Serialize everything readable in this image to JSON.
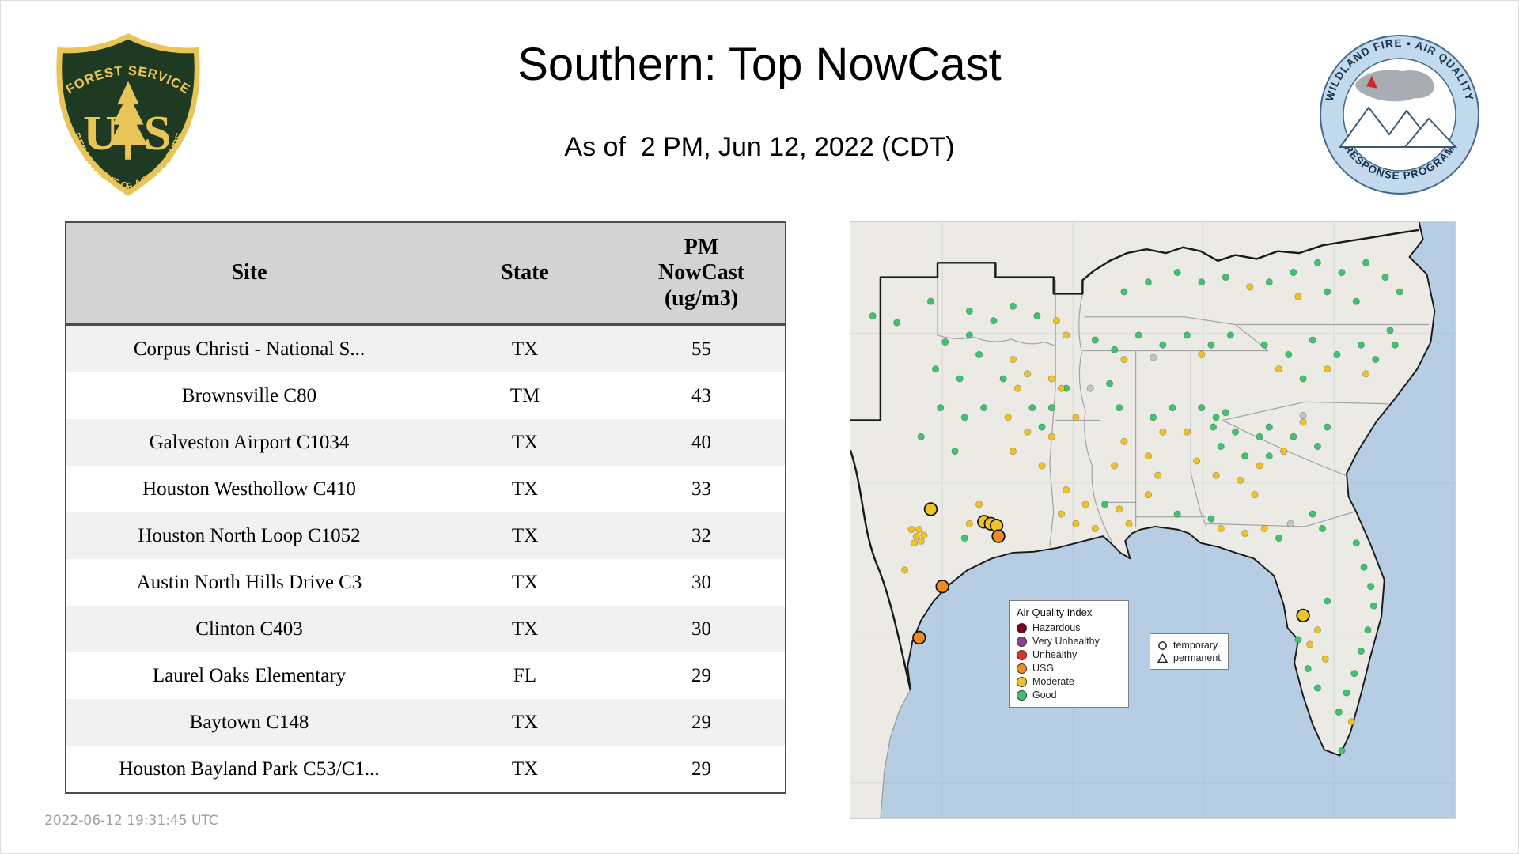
{
  "header": {
    "title": "Southern: Top NowCast",
    "subtitle": "As of  2 PM, Jun 12, 2022 (CDT)"
  },
  "logos": {
    "usfs": {
      "top_text": "FOREST SERVICE",
      "u": "U",
      "s": "S",
      "bottom_text": "DEPARTMENT OF AGRICULTURE",
      "green": "#1e3a22",
      "gold": "#e9c558"
    },
    "airfire": {
      "top_text": "WILDLAND FIRE • AIR QUALITY",
      "bottom_text": "RESPONSE PROGRAM"
    }
  },
  "table": {
    "headers": {
      "site": "Site",
      "state": "State",
      "pm_lines": [
        "PM",
        "NowCast",
        "(ug/m3)"
      ]
    },
    "rows": [
      [
        "Corpus Christi - National S...",
        "TX",
        "55"
      ],
      [
        "Brownsville C80",
        "TM",
        "43"
      ],
      [
        "Galveston Airport C1034",
        "TX",
        "40"
      ],
      [
        "Houston Westhollow C410",
        "TX",
        "33"
      ],
      [
        "Houston North Loop C1052",
        "TX",
        "32"
      ],
      [
        "Austin North Hills Drive C3",
        "TX",
        "30"
      ],
      [
        "Clinton C403",
        "TX",
        "30"
      ],
      [
        "Laurel Oaks Elementary",
        "FL",
        "29"
      ],
      [
        "Baytown C148",
        "TX",
        "29"
      ],
      [
        "Houston Bayland Park C53/C1...",
        "TX",
        "29"
      ]
    ]
  },
  "map": {
    "colors": {
      "water": "#b7cde3",
      "land": "#eceae5",
      "state_line": "#9b9b9b",
      "region_line": "#1a1a1a"
    },
    "marker_colors": {
      "g": "#3fc46d",
      "y": "#eec32a",
      "o": "#f08b22",
      "n": "#c4c4c4"
    },
    "legend": {
      "title": "Air Quality Index",
      "items": [
        {
          "label": "Hazardous",
          "color": "#7e0023"
        },
        {
          "label": "Very Unhealthy",
          "color": "#8f3f97"
        },
        {
          "label": "Unhealthy",
          "color": "#e03131"
        },
        {
          "label": "USG",
          "color": "#f08b22"
        },
        {
          "label": "Moderate",
          "color": "#eec32a"
        },
        {
          "label": "Good",
          "color": "#3fc46d"
        }
      ]
    },
    "symbol_legend": {
      "temporary": "temporary",
      "permanent": "permanent"
    },
    "monitors": [
      [
        23,
        97,
        "g"
      ],
      [
        48,
        104,
        "g"
      ],
      [
        98,
        124,
        "g"
      ],
      [
        123,
        117,
        "g"
      ],
      [
        88,
        152,
        "g"
      ],
      [
        113,
        162,
        "g"
      ],
      [
        133,
        137,
        "g"
      ],
      [
        158,
        162,
        "g"
      ],
      [
        93,
        192,
        "g"
      ],
      [
        118,
        202,
        "g"
      ],
      [
        138,
        192,
        "g"
      ],
      [
        73,
        222,
        "g"
      ],
      [
        108,
        237,
        "g"
      ],
      [
        83,
        82,
        "g"
      ],
      [
        123,
        92,
        "g"
      ],
      [
        148,
        102,
        "g"
      ],
      [
        168,
        87,
        "g"
      ],
      [
        193,
        97,
        "g"
      ],
      [
        188,
        192,
        "g"
      ],
      [
        198,
        212,
        "g"
      ],
      [
        208,
        192,
        "g"
      ],
      [
        223,
        172,
        "g"
      ],
      [
        263,
        292,
        "g"
      ],
      [
        278,
        192,
        "g"
      ],
      [
        268,
        167,
        "g"
      ],
      [
        333,
        192,
        "g"
      ],
      [
        313,
        202,
        "g"
      ],
      [
        338,
        302,
        "g"
      ],
      [
        253,
        122,
        "g"
      ],
      [
        273,
        132,
        "g"
      ],
      [
        298,
        117,
        "g"
      ],
      [
        323,
        127,
        "g"
      ],
      [
        348,
        117,
        "g"
      ],
      [
        373,
        127,
        "g"
      ],
      [
        393,
        117,
        "g"
      ],
      [
        283,
        72,
        "g"
      ],
      [
        308,
        62,
        "g"
      ],
      [
        338,
        52,
        "g"
      ],
      [
        363,
        62,
        "g"
      ],
      [
        388,
        57,
        "g"
      ],
      [
        433,
        62,
        "g"
      ],
      [
        458,
        52,
        "g"
      ],
      [
        483,
        42,
        "g"
      ],
      [
        508,
        52,
        "g"
      ],
      [
        533,
        42,
        "g"
      ],
      [
        553,
        57,
        "g"
      ],
      [
        568,
        72,
        "g"
      ],
      [
        493,
        72,
        "g"
      ],
      [
        523,
        82,
        "g"
      ],
      [
        428,
        127,
        "g"
      ],
      [
        453,
        137,
        "g"
      ],
      [
        478,
        122,
        "g"
      ],
      [
        503,
        137,
        "g"
      ],
      [
        528,
        127,
        "g"
      ],
      [
        543,
        142,
        "g"
      ],
      [
        563,
        127,
        "g"
      ],
      [
        468,
        162,
        "g"
      ],
      [
        558,
        112,
        "g"
      ],
      [
        433,
        212,
        "g"
      ],
      [
        458,
        222,
        "g"
      ],
      [
        483,
        232,
        "g"
      ],
      [
        493,
        212,
        "g"
      ],
      [
        363,
        192,
        "g"
      ],
      [
        378,
        202,
        "g"
      ],
      [
        375,
        212,
        "g"
      ],
      [
        388,
        197,
        "g"
      ],
      [
        398,
        217,
        "g"
      ],
      [
        383,
        232,
        "g"
      ],
      [
        408,
        242,
        "g"
      ],
      [
        423,
        222,
        "g"
      ],
      [
        433,
        242,
        "g"
      ],
      [
        373,
        307,
        "g"
      ],
      [
        443,
        327,
        "g"
      ],
      [
        478,
        302,
        "g"
      ],
      [
        488,
        317,
        "g"
      ],
      [
        523,
        332,
        "g"
      ],
      [
        531,
        357,
        "g"
      ],
      [
        538,
        377,
        "g"
      ],
      [
        541,
        397,
        "g"
      ],
      [
        535,
        422,
        "g"
      ],
      [
        528,
        444,
        "g"
      ],
      [
        521,
        467,
        "g"
      ],
      [
        513,
        487,
        "g"
      ],
      [
        505,
        507,
        "g"
      ],
      [
        493,
        392,
        "g"
      ],
      [
        463,
        432,
        "g"
      ],
      [
        473,
        462,
        "g"
      ],
      [
        483,
        482,
        "g"
      ],
      [
        508,
        547,
        "g"
      ],
      [
        118,
        327,
        "g"
      ],
      [
        168,
        142,
        "y"
      ],
      [
        183,
        157,
        "y"
      ],
      [
        208,
        162,
        "y"
      ],
      [
        218,
        172,
        "y"
      ],
      [
        173,
        172,
        "y"
      ],
      [
        163,
        202,
        "y"
      ],
      [
        183,
        217,
        "y"
      ],
      [
        168,
        237,
        "y"
      ],
      [
        208,
        222,
        "y"
      ],
      [
        63,
        318,
        "y"
      ],
      [
        68,
        325,
        "y"
      ],
      [
        73,
        330,
        "y"
      ],
      [
        66,
        332,
        "y"
      ],
      [
        71,
        318,
        "y"
      ],
      [
        76,
        324,
        "y"
      ],
      [
        56,
        360,
        "y"
      ],
      [
        133,
        292,
        "y"
      ],
      [
        123,
        312,
        "y"
      ],
      [
        213,
        102,
        "y"
      ],
      [
        223,
        117,
        "y"
      ],
      [
        233,
        202,
        "y"
      ],
      [
        218,
        302,
        "y"
      ],
      [
        233,
        312,
        "y"
      ],
      [
        253,
        317,
        "y"
      ],
      [
        243,
        292,
        "y"
      ],
      [
        223,
        277,
        "y"
      ],
      [
        198,
        252,
        "y"
      ],
      [
        273,
        252,
        "y"
      ],
      [
        283,
        227,
        "y"
      ],
      [
        278,
        297,
        "y"
      ],
      [
        288,
        312,
        "y"
      ],
      [
        308,
        242,
        "y"
      ],
      [
        318,
        262,
        "y"
      ],
      [
        323,
        217,
        "y"
      ],
      [
        308,
        282,
        "y"
      ],
      [
        283,
        142,
        "y"
      ],
      [
        363,
        137,
        "y"
      ],
      [
        413,
        67,
        "y"
      ],
      [
        463,
        77,
        "y"
      ],
      [
        443,
        152,
        "y"
      ],
      [
        493,
        152,
        "y"
      ],
      [
        533,
        157,
        "y"
      ],
      [
        468,
        207,
        "y"
      ],
      [
        448,
        237,
        "y"
      ],
      [
        348,
        217,
        "y"
      ],
      [
        358,
        247,
        "y"
      ],
      [
        378,
        262,
        "y"
      ],
      [
        403,
        267,
        "y"
      ],
      [
        423,
        252,
        "y"
      ],
      [
        418,
        282,
        "y"
      ],
      [
        383,
        317,
        "y"
      ],
      [
        408,
        322,
        "y"
      ],
      [
        428,
        317,
        "y"
      ],
      [
        475,
        437,
        "y"
      ],
      [
        491,
        452,
        "y"
      ],
      [
        483,
        422,
        "y"
      ],
      [
        518,
        517,
        "y"
      ],
      [
        313,
        140,
        "n"
      ],
      [
        468,
        200,
        "n"
      ],
      [
        455,
        312,
        "n"
      ],
      [
        248,
        172,
        "n"
      ]
    ],
    "temporary_monitors": [
      [
        83,
        297,
        "y"
      ],
      [
        138,
        310,
        "y"
      ],
      [
        145,
        312,
        "y"
      ],
      [
        151,
        314,
        "y"
      ],
      [
        153,
        325,
        "o"
      ],
      [
        95,
        377,
        "o"
      ],
      [
        71,
        430,
        "o"
      ],
      [
        468,
        407,
        "y"
      ]
    ]
  },
  "footer": {
    "timestamp": "2022-06-12 19:31:45 UTC"
  },
  "chart_data": {
    "type": "table",
    "title": "Southern: Top NowCast",
    "subtitle": "As of 2 PM, Jun 12, 2022 (CDT)",
    "columns": [
      "Site",
      "State",
      "PM NowCast (ug/m3)"
    ],
    "rows": [
      [
        "Corpus Christi - National S...",
        "TX",
        55
      ],
      [
        "Brownsville C80",
        "TM",
        43
      ],
      [
        "Galveston Airport C1034",
        "TX",
        40
      ],
      [
        "Houston Westhollow C410",
        "TX",
        33
      ],
      [
        "Houston North Loop C1052",
        "TX",
        32
      ],
      [
        "Austin North Hills Drive C3",
        "TX",
        30
      ],
      [
        "Clinton C403",
        "TX",
        30
      ],
      [
        "Laurel Oaks Elementary",
        "FL",
        29
      ],
      [
        "Baytown C148",
        "TX",
        29
      ],
      [
        "Houston Bayland Park C53/C1...",
        "TX",
        29
      ]
    ],
    "map_legend_categories": [
      "Hazardous",
      "Very Unhealthy",
      "Unhealthy",
      "USG",
      "Moderate",
      "Good"
    ]
  }
}
